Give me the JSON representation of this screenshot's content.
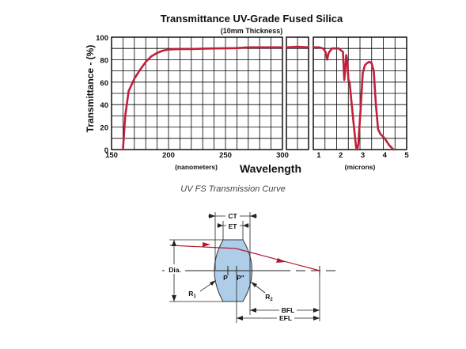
{
  "chart_data": {
    "type": "line",
    "title": "Transmittance UV-Grade Fused Silica",
    "subtitle": "(10mm Thickness)",
    "ylabel": "Transmittance - (%)",
    "xlabel": "Wavelength",
    "ylim": [
      0,
      100
    ],
    "y_ticks": [
      "0",
      "20",
      "40",
      "60",
      "80",
      "100"
    ],
    "grid": true,
    "colors": {
      "curve": "#c0203a",
      "grid": "#000000"
    },
    "panels": [
      {
        "unit_label": "(nanometers)",
        "xlim": [
          150,
          300
        ],
        "x_ticks": [
          "150",
          "200",
          "250",
          "300"
        ],
        "series": [
          {
            "x": [
              160,
              162,
              165,
              170,
              175,
              180,
              185,
              190,
              195,
              200,
              210,
              220,
              240,
              260,
              270,
              280,
              290,
              300
            ],
            "y": [
              0,
              30,
              52,
              63,
              71,
              78,
              83,
              86,
              88,
              89,
              89.5,
              89.5,
              90,
              90.3,
              91,
              91,
              91,
              91
            ]
          }
        ]
      },
      {
        "unit_label": "",
        "xlim": [
          300,
          400
        ],
        "x_ticks": [],
        "series": [
          {
            "x": [
              300,
              350,
              400
            ],
            "y": [
              91,
              91.5,
              91
            ]
          }
        ]
      },
      {
        "unit_label": "(microns)",
        "xlim": [
          0.75,
          5
        ],
        "x_ticks": [
          "1",
          "2",
          "3",
          "4",
          "5"
        ],
        "series": [
          {
            "x": [
              0.75,
              1.0,
              1.2,
              1.3,
              1.38,
              1.45,
              1.6,
              1.9,
              2.1,
              2.16,
              2.2,
              2.25,
              2.3,
              2.35,
              2.4,
              2.5,
              2.6,
              2.7,
              2.75,
              2.8,
              2.9,
              3.0,
              3.1,
              3.2,
              3.3,
              3.4,
              3.5,
              3.6,
              3.7,
              3.8,
              4.0,
              4.2,
              4.4
            ],
            "y": [
              91,
              91,
              90,
              87,
              80,
              86,
              90,
              90,
              87,
              62,
              70,
              84,
              79,
              62,
              60,
              40,
              20,
              2,
              0,
              5,
              35,
              68,
              75,
              77,
              78,
              77,
              70,
              40,
              18,
              14,
              10,
              4,
              0
            ]
          }
        ]
      }
    ]
  },
  "caption": "UV FS Transmission Curve",
  "diagram": {
    "labels": {
      "ct": "CT",
      "et": "ET",
      "dia": "Dia.",
      "p": "P",
      "p_prime": "P\"",
      "r1": "R1",
      "r2": "R2",
      "bfl": "BFL",
      "efl": "EFL"
    }
  }
}
